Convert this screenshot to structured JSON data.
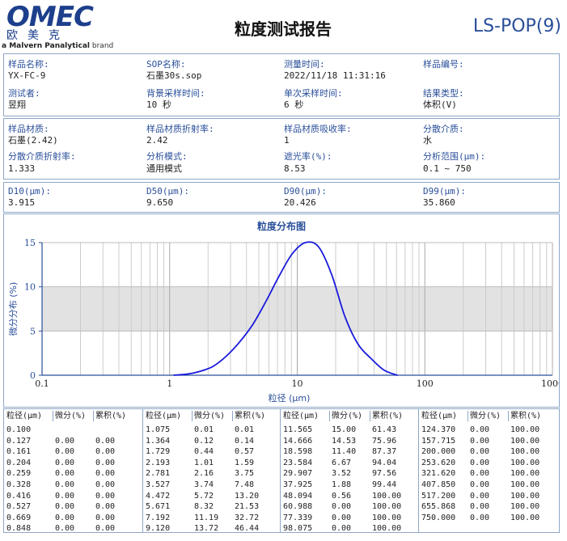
{
  "header": {
    "logo_text": "OMEC",
    "logo_cn": "欧美克",
    "logo_sub_brand": "a Malvern Panalytical",
    "logo_sub_suffix": "brand",
    "title": "粒度测试报告",
    "code": "LS-POP(9)"
  },
  "info1": [
    {
      "label": "样品名称:",
      "value": "YX-FC-9"
    },
    {
      "label": "SOP名称:",
      "value": "石墨30s.sop"
    },
    {
      "label": "测量时间:",
      "value": "2022/11/18  11:31:16"
    },
    {
      "label": "样品编号:",
      "value": ""
    },
    {
      "label": "测试者:",
      "value": "昱翔"
    },
    {
      "label": "背景采样时间:",
      "value": "10 秒"
    },
    {
      "label": "单次采样时间:",
      "value": "6 秒"
    },
    {
      "label": "结果类型:",
      "value": "体积(V)"
    }
  ],
  "info2": [
    {
      "label": "样品材质:",
      "value": "石墨(2.42)"
    },
    {
      "label": "样品材质折射率:",
      "value": "2.42"
    },
    {
      "label": "样品材质吸收率:",
      "value": "1"
    },
    {
      "label": "分散介质:",
      "value": "水"
    },
    {
      "label": "分散介质折射率:",
      "value": "1.333"
    },
    {
      "label": "分析模式:",
      "value": "通用模式"
    },
    {
      "label": "遮光率(%):",
      "value": "8.53"
    },
    {
      "label": "分析范围(μm):",
      "value": "0.1 ~ 750"
    }
  ],
  "dvalues": [
    {
      "label": "D10(μm):",
      "value": "3.915"
    },
    {
      "label": "D50(μm):",
      "value": "9.650"
    },
    {
      "label": "D90(μm):",
      "value": "20.426"
    },
    {
      "label": "D99(μm):",
      "value": "35.860"
    }
  ],
  "chart_data": {
    "type": "line",
    "title": "粒度分布图",
    "xlabel": "粒径 (μm)",
    "ylabel": "微分分布 (%)",
    "x_scale": "log",
    "xlim": [
      0.1,
      1000
    ],
    "ylim": [
      0,
      15
    ],
    "x_ticks": [
      "0.1",
      "1",
      "10",
      "100",
      "1000"
    ],
    "y_ticks": [
      "0",
      "5",
      "10",
      "15"
    ],
    "grid": true,
    "shaded_band_y": [
      5,
      10
    ],
    "series": [
      {
        "color": "#1a1adc",
        "x": [
          1.075,
          1.364,
          1.729,
          2.193,
          2.781,
          3.527,
          4.472,
          5.671,
          7.192,
          9.12,
          11.565,
          14.666,
          18.598,
          23.584,
          29.907,
          37.925,
          48.094,
          60.988
        ],
        "y": [
          0.01,
          0.12,
          0.44,
          1.01,
          2.16,
          3.74,
          5.72,
          8.32,
          11.19,
          13.72,
          15.0,
          14.53,
          11.4,
          6.67,
          3.52,
          1.88,
          0.56,
          0.0
        ]
      }
    ]
  },
  "table": {
    "headers": [
      "粒径(μm)",
      "微分(%)",
      "累积(%)"
    ],
    "columns": [
      [
        [
          "0.100",
          "",
          ""
        ],
        [
          "0.127",
          "0.00",
          "0.00"
        ],
        [
          "0.161",
          "0.00",
          "0.00"
        ],
        [
          "0.204",
          "0.00",
          "0.00"
        ],
        [
          "0.259",
          "0.00",
          "0.00"
        ],
        [
          "0.328",
          "0.00",
          "0.00"
        ],
        [
          "0.416",
          "0.00",
          "0.00"
        ],
        [
          "0.527",
          "0.00",
          "0.00"
        ],
        [
          "0.669",
          "0.00",
          "0.00"
        ],
        [
          "0.848",
          "0.00",
          "0.00"
        ]
      ],
      [
        [
          "1.075",
          "0.01",
          "0.01"
        ],
        [
          "1.364",
          "0.12",
          "0.14"
        ],
        [
          "1.729",
          "0.44",
          "0.57"
        ],
        [
          "2.193",
          "1.01",
          "1.59"
        ],
        [
          "2.781",
          "2.16",
          "3.75"
        ],
        [
          "3.527",
          "3.74",
          "7.48"
        ],
        [
          "4.472",
          "5.72",
          "13.20"
        ],
        [
          "5.671",
          "8.32",
          "21.53"
        ],
        [
          "7.192",
          "11.19",
          "32.72"
        ],
        [
          "9.120",
          "13.72",
          "46.44"
        ]
      ],
      [
        [
          "11.565",
          "15.00",
          "61.43"
        ],
        [
          "14.666",
          "14.53",
          "75.96"
        ],
        [
          "18.598",
          "11.40",
          "87.37"
        ],
        [
          "23.584",
          "6.67",
          "94.04"
        ],
        [
          "29.907",
          "3.52",
          "97.56"
        ],
        [
          "37.925",
          "1.88",
          "99.44"
        ],
        [
          "48.094",
          "0.56",
          "100.00"
        ],
        [
          "60.988",
          "0.00",
          "100.00"
        ],
        [
          "77.339",
          "0.00",
          "100.00"
        ],
        [
          "98.075",
          "0.00",
          "100.00"
        ]
      ],
      [
        [
          "124.370",
          "0.00",
          "100.00"
        ],
        [
          "157.715",
          "0.00",
          "100.00"
        ],
        [
          "200.000",
          "0.00",
          "100.00"
        ],
        [
          "253.620",
          "0.00",
          "100.00"
        ],
        [
          "321.620",
          "0.00",
          "100.00"
        ],
        [
          "407.850",
          "0.00",
          "100.00"
        ],
        [
          "517.200",
          "0.00",
          "100.00"
        ],
        [
          "655.868",
          "0.00",
          "100.00"
        ],
        [
          "750.000",
          "0.00",
          "100.00"
        ]
      ]
    ]
  }
}
